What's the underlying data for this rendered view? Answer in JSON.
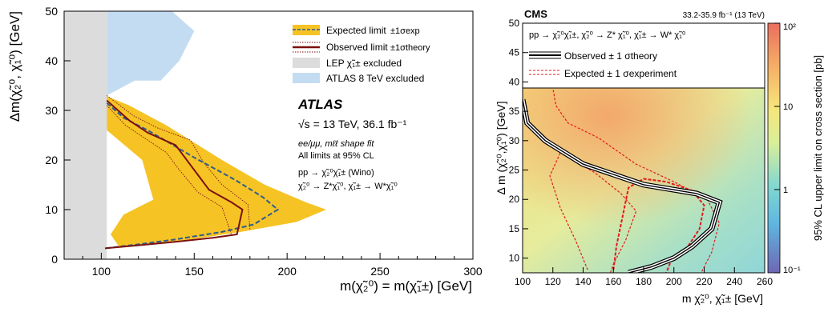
{
  "chart_data": [
    {
      "type": "area",
      "title": "ATLAS",
      "energy_label": "√s = 13 TeV, 36.1 fb⁻¹",
      "fit_label": "ee/μμ, mℓℓ shape fit",
      "cl_label": "All limits at 95% CL",
      "process_label_1": "pp → χ̃₂⁰χ̃₁± (Wino)",
      "process_label_2": "χ̃₂⁰ → Z*χ̃₁⁰, χ̃₁± → W*χ̃₁⁰",
      "xlabel": "m(χ̃₂⁰) = m(χ̃₁±) [GeV]",
      "ylabel": "Δm(χ̃₂⁰, χ̃₁⁰) [GeV]",
      "xlim": [
        80,
        300
      ],
      "ylim": [
        0,
        50
      ],
      "xticks": [
        100,
        150,
        200,
        250,
        300
      ],
      "yticks": [
        0,
        10,
        20,
        30,
        40,
        50
      ],
      "legend_position": "top-right",
      "legend": [
        {
          "label": "Expected limit",
          "sub": "±1σexp",
          "color": "#f6c325"
        },
        {
          "label": "Observed limit",
          "sub": "±1σtheory",
          "color": "#7b1010"
        },
        {
          "label": "LEP χ̃₁± excluded",
          "sub": "",
          "color": "#dcdcdc"
        },
        {
          "label": "ATLAS 8 TeV excluded",
          "sub": "",
          "color": "#c3dcf2"
        }
      ],
      "lep_region": {
        "x_min": 80,
        "x_max": 103
      },
      "atlas8_region": [
        [
          103,
          50
        ],
        [
          138,
          50
        ],
        [
          150,
          46
        ],
        [
          142,
          40
        ],
        [
          132,
          36
        ],
        [
          118,
          36
        ],
        [
          103,
          33
        ]
      ],
      "expected_band": [
        [
          102,
          33
        ],
        [
          115,
          31
        ],
        [
          135,
          27
        ],
        [
          165,
          20
        ],
        [
          188,
          15
        ],
        [
          210,
          11.5
        ],
        [
          221,
          10
        ],
        [
          205,
          7.5
        ],
        [
          175,
          5.5
        ],
        [
          140,
          3.5
        ],
        [
          110,
          2.3
        ],
        [
          105,
          5
        ],
        [
          112,
          9
        ],
        [
          128,
          12
        ],
        [
          122,
          20
        ],
        [
          103,
          26
        ]
      ],
      "expected_line": [
        [
          103,
          31.5
        ],
        [
          112,
          28.5
        ],
        [
          125,
          26
        ],
        [
          150,
          20.5
        ],
        [
          172,
          16
        ],
        [
          187,
          12.5
        ],
        [
          195,
          10
        ],
        [
          182,
          7
        ],
        [
          165,
          5.5
        ],
        [
          140,
          4
        ],
        [
          120,
          3
        ],
        [
          102,
          2.2
        ]
      ],
      "observed_line": [
        [
          103,
          32
        ],
        [
          115,
          28
        ],
        [
          125,
          25.5
        ],
        [
          140,
          23
        ],
        [
          148,
          19
        ],
        [
          158,
          14
        ],
        [
          170,
          11.5
        ],
        [
          176,
          10
        ],
        [
          173,
          5
        ],
        [
          160,
          4.3
        ],
        [
          140,
          3.5
        ],
        [
          120,
          2.8
        ],
        [
          102,
          2.2
        ]
      ],
      "observed_up": [
        [
          103,
          33
        ],
        [
          117,
          29
        ],
        [
          130,
          26.5
        ],
        [
          148,
          24
        ],
        [
          155,
          19.5
        ],
        [
          165,
          15
        ],
        [
          179,
          11
        ],
        [
          180,
          6
        ]
      ],
      "observed_down": [
        [
          103,
          31
        ],
        [
          113,
          27
        ],
        [
          123,
          24.5
        ],
        [
          135,
          21.5
        ],
        [
          142,
          18
        ],
        [
          152,
          13.5
        ],
        [
          165,
          10.5
        ],
        [
          170,
          5
        ]
      ]
    },
    {
      "type": "heatmap",
      "title": "CMS",
      "lumi_label": "33.2-35.9 fb⁻¹ (13 TeV)",
      "process_label": "pp → χ̃₂⁰χ̃₁±, χ̃₂⁰ → Z* χ̃₁⁰, χ̃₁± → W* χ̃₁⁰",
      "legend": [
        {
          "label": "Observed ± 1 σtheory",
          "color": "#000000"
        },
        {
          "label": "Expected ± 1 σexperiment",
          "color": "#e31a1c"
        }
      ],
      "xlabel": "m χ̃₂⁰, χ̃₁± [GeV]",
      "ylabel": "Δ m (χ̃₂⁰,χ̃₁⁰) [GeV]",
      "zlabel": "95% CL upper limit on cross section [pb]",
      "xlim": [
        100,
        260
      ],
      "ylim": [
        7.5,
        50
      ],
      "xticks": [
        100,
        120,
        140,
        160,
        180,
        200,
        220,
        240,
        260
      ],
      "yticks": [
        10,
        15,
        20,
        25,
        30,
        35,
        40,
        45,
        50
      ],
      "zlim": [
        0.1,
        100
      ],
      "zticks": [
        "10⁻¹",
        "1",
        "10",
        "10²"
      ],
      "colorscale": [
        "#6e67b3",
        "#5fb7e0",
        "#83d8d0",
        "#d9ee9a",
        "#f6e57a",
        "#f5b167",
        "#ea6e5f"
      ],
      "observed_line": [
        [
          100,
          37
        ],
        [
          103,
          33
        ],
        [
          115,
          30
        ],
        [
          140,
          26
        ],
        [
          180,
          22.5
        ],
        [
          215,
          21
        ],
        [
          230,
          19.5
        ],
        [
          225,
          15
        ],
        [
          212,
          12
        ],
        [
          200,
          10
        ],
        [
          185,
          8.5
        ],
        [
          170,
          7.5
        ]
      ],
      "expected_line": [
        [
          160,
          8
        ],
        [
          162,
          12
        ],
        [
          166,
          17
        ],
        [
          170,
          22
        ],
        [
          180,
          23.5
        ],
        [
          195,
          23
        ],
        [
          212,
          21.5
        ],
        [
          220,
          19
        ],
        [
          217,
          15
        ],
        [
          208,
          11.5
        ],
        [
          198,
          9.5
        ],
        [
          195,
          7.5
        ]
      ],
      "expected_up": [
        [
          118,
          42
        ],
        [
          122,
          36
        ],
        [
          130,
          33
        ],
        [
          150,
          30.5
        ],
        [
          175,
          26
        ],
        [
          200,
          23
        ],
        [
          222,
          20
        ],
        [
          230,
          16
        ],
        [
          225,
          11
        ],
        [
          218,
          7.5
        ]
      ],
      "expected_down": [
        [
          143,
          8
        ],
        [
          135,
          13
        ],
        [
          125,
          18.5
        ],
        [
          118,
          24
        ],
        [
          125,
          28
        ],
        [
          148,
          24.5
        ],
        [
          165,
          21
        ],
        [
          175,
          18
        ],
        [
          168,
          13
        ],
        [
          160,
          9
        ],
        [
          158,
          7.5
        ]
      ]
    }
  ]
}
